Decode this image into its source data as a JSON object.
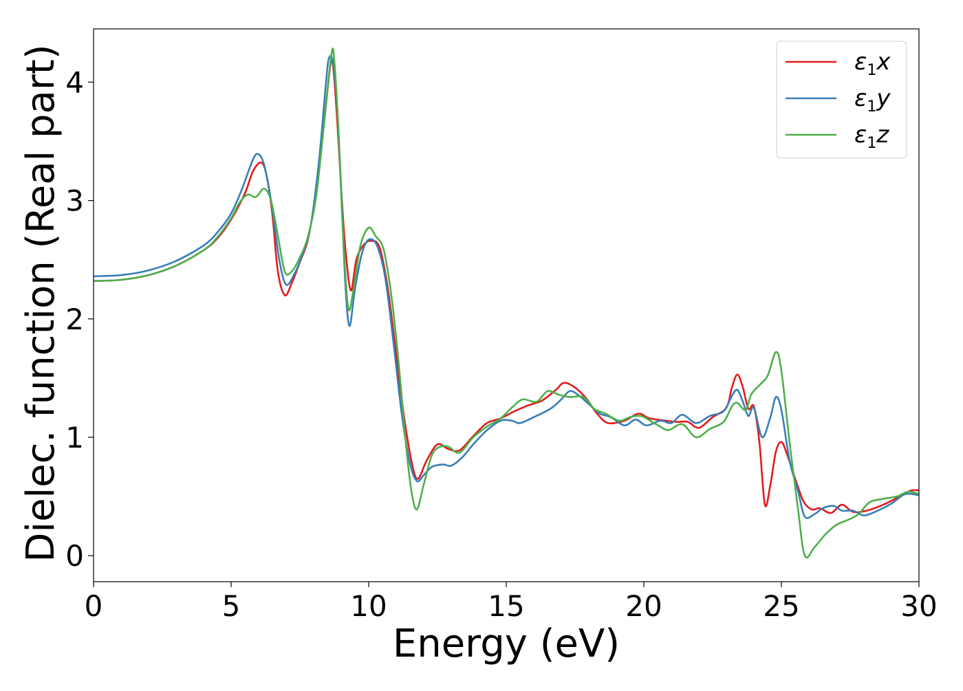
{
  "chart_data": {
    "type": "line",
    "title": "",
    "xlabel": "Energy (eV)",
    "ylabel": "Dielec. function (Real part)",
    "xlim": [
      0,
      30
    ],
    "ylim": [
      -0.22,
      4.45
    ],
    "xticks": [
      0,
      5,
      10,
      15,
      20,
      25,
      30
    ],
    "yticks": [
      0,
      1,
      2,
      3,
      4
    ],
    "grid": false,
    "legend_position": "top-right",
    "series": [
      {
        "name": "ε₁x",
        "legend_base": "ε",
        "legend_sub": "1",
        "legend_tail": "x",
        "color": "#e41a1c",
        "points": [
          [
            0,
            2.32
          ],
          [
            1,
            2.33
          ],
          [
            2,
            2.37
          ],
          [
            3,
            2.45
          ],
          [
            4,
            2.58
          ],
          [
            4.5,
            2.68
          ],
          [
            5,
            2.84
          ],
          [
            5.5,
            3.06
          ],
          [
            5.8,
            3.25
          ],
          [
            6.1,
            3.32
          ],
          [
            6.3,
            3.2
          ],
          [
            6.5,
            2.88
          ],
          [
            6.7,
            2.4
          ],
          [
            6.95,
            2.2
          ],
          [
            7.2,
            2.3
          ],
          [
            7.5,
            2.48
          ],
          [
            7.8,
            2.68
          ],
          [
            8.1,
            3.1
          ],
          [
            8.4,
            3.7
          ],
          [
            8.6,
            4.13
          ],
          [
            8.7,
            4.15
          ],
          [
            8.85,
            3.7
          ],
          [
            9.0,
            3.1
          ],
          [
            9.15,
            2.6
          ],
          [
            9.35,
            2.24
          ],
          [
            9.55,
            2.5
          ],
          [
            9.8,
            2.62
          ],
          [
            10.1,
            2.66
          ],
          [
            10.4,
            2.6
          ],
          [
            10.7,
            2.25
          ],
          [
            11.0,
            1.7
          ],
          [
            11.3,
            1.15
          ],
          [
            11.6,
            0.75
          ],
          [
            11.8,
            0.65
          ],
          [
            12.1,
            0.8
          ],
          [
            12.5,
            0.94
          ],
          [
            12.9,
            0.9
          ],
          [
            13.3,
            0.89
          ],
          [
            13.8,
            1.01
          ],
          [
            14.3,
            1.12
          ],
          [
            14.8,
            1.16
          ],
          [
            15.3,
            1.22
          ],
          [
            15.8,
            1.27
          ],
          [
            16.3,
            1.31
          ],
          [
            16.8,
            1.4
          ],
          [
            17.1,
            1.46
          ],
          [
            17.5,
            1.42
          ],
          [
            17.9,
            1.33
          ],
          [
            18.3,
            1.2
          ],
          [
            18.7,
            1.12
          ],
          [
            19.3,
            1.14
          ],
          [
            19.8,
            1.2
          ],
          [
            20.2,
            1.16
          ],
          [
            20.8,
            1.14
          ],
          [
            21.2,
            1.13
          ],
          [
            21.6,
            1.13
          ],
          [
            22.0,
            1.08
          ],
          [
            22.5,
            1.17
          ],
          [
            23.0,
            1.25
          ],
          [
            23.2,
            1.42
          ],
          [
            23.4,
            1.53
          ],
          [
            23.6,
            1.42
          ],
          [
            23.8,
            1.24
          ],
          [
            24.0,
            1.26
          ],
          [
            24.2,
            0.96
          ],
          [
            24.4,
            0.43
          ],
          [
            24.6,
            0.6
          ],
          [
            24.8,
            0.88
          ],
          [
            25.0,
            0.96
          ],
          [
            25.2,
            0.86
          ],
          [
            25.5,
            0.65
          ],
          [
            25.8,
            0.46
          ],
          [
            26.1,
            0.39
          ],
          [
            26.4,
            0.4
          ],
          [
            26.8,
            0.36
          ],
          [
            27.2,
            0.43
          ],
          [
            27.6,
            0.37
          ],
          [
            28.1,
            0.38
          ],
          [
            28.7,
            0.43
          ],
          [
            29.3,
            0.5
          ],
          [
            29.7,
            0.55
          ],
          [
            30,
            0.55
          ]
        ]
      },
      {
        "name": "ε₁y",
        "legend_base": "ε",
        "legend_sub": "1",
        "legend_tail": "y",
        "color": "#377eb8",
        "points": [
          [
            0,
            2.36
          ],
          [
            1,
            2.37
          ],
          [
            2,
            2.41
          ],
          [
            3,
            2.49
          ],
          [
            4,
            2.62
          ],
          [
            4.5,
            2.73
          ],
          [
            5,
            2.89
          ],
          [
            5.4,
            3.1
          ],
          [
            5.8,
            3.35
          ],
          [
            6.0,
            3.39
          ],
          [
            6.2,
            3.3
          ],
          [
            6.45,
            3.0
          ],
          [
            6.75,
            2.5
          ],
          [
            7.0,
            2.29
          ],
          [
            7.3,
            2.38
          ],
          [
            7.6,
            2.55
          ],
          [
            7.9,
            2.8
          ],
          [
            8.2,
            3.35
          ],
          [
            8.45,
            4.0
          ],
          [
            8.55,
            4.2
          ],
          [
            8.7,
            4.17
          ],
          [
            8.85,
            3.8
          ],
          [
            9.0,
            3.1
          ],
          [
            9.15,
            2.3
          ],
          [
            9.3,
            1.94
          ],
          [
            9.5,
            2.25
          ],
          [
            9.75,
            2.55
          ],
          [
            10.0,
            2.67
          ],
          [
            10.3,
            2.62
          ],
          [
            10.6,
            2.35
          ],
          [
            10.9,
            1.8
          ],
          [
            11.2,
            1.2
          ],
          [
            11.5,
            0.78
          ],
          [
            11.75,
            0.63
          ],
          [
            12.0,
            0.68
          ],
          [
            12.3,
            0.75
          ],
          [
            12.7,
            0.77
          ],
          [
            13.0,
            0.76
          ],
          [
            13.4,
            0.83
          ],
          [
            13.8,
            0.94
          ],
          [
            14.3,
            1.06
          ],
          [
            14.8,
            1.14
          ],
          [
            15.2,
            1.14
          ],
          [
            15.5,
            1.12
          ],
          [
            16.0,
            1.17
          ],
          [
            16.6,
            1.24
          ],
          [
            17.0,
            1.32
          ],
          [
            17.3,
            1.39
          ],
          [
            17.6,
            1.36
          ],
          [
            18.0,
            1.28
          ],
          [
            18.4,
            1.2
          ],
          [
            18.8,
            1.17
          ],
          [
            19.3,
            1.1
          ],
          [
            19.7,
            1.15
          ],
          [
            20.1,
            1.1
          ],
          [
            20.6,
            1.14
          ],
          [
            21.0,
            1.12
          ],
          [
            21.4,
            1.19
          ],
          [
            21.9,
            1.12
          ],
          [
            22.4,
            1.18
          ],
          [
            22.9,
            1.22
          ],
          [
            23.2,
            1.35
          ],
          [
            23.4,
            1.4
          ],
          [
            23.6,
            1.3
          ],
          [
            23.8,
            1.18
          ],
          [
            24.0,
            1.25
          ],
          [
            24.3,
            1.0
          ],
          [
            24.6,
            1.17
          ],
          [
            24.8,
            1.34
          ],
          [
            25.0,
            1.23
          ],
          [
            25.3,
            0.8
          ],
          [
            25.6,
            0.55
          ],
          [
            25.85,
            0.33
          ],
          [
            26.2,
            0.35
          ],
          [
            26.5,
            0.4
          ],
          [
            26.9,
            0.42
          ],
          [
            27.2,
            0.38
          ],
          [
            27.6,
            0.38
          ],
          [
            28.0,
            0.34
          ],
          [
            28.5,
            0.38
          ],
          [
            29.0,
            0.44
          ],
          [
            29.5,
            0.52
          ],
          [
            30,
            0.51
          ]
        ]
      },
      {
        "name": "ε₁z",
        "legend_base": "ε",
        "legend_sub": "1",
        "legend_tail": "z",
        "color": "#4daf4a",
        "points": [
          [
            0,
            2.32
          ],
          [
            1,
            2.33
          ],
          [
            2,
            2.37
          ],
          [
            3,
            2.45
          ],
          [
            4,
            2.58
          ],
          [
            4.5,
            2.69
          ],
          [
            5,
            2.85
          ],
          [
            5.3,
            2.98
          ],
          [
            5.6,
            3.05
          ],
          [
            5.9,
            3.03
          ],
          [
            6.2,
            3.1
          ],
          [
            6.45,
            3.0
          ],
          [
            6.7,
            2.7
          ],
          [
            6.95,
            2.4
          ],
          [
            7.2,
            2.4
          ],
          [
            7.5,
            2.52
          ],
          [
            7.8,
            2.7
          ],
          [
            8.1,
            3.05
          ],
          [
            8.4,
            3.7
          ],
          [
            8.65,
            4.24
          ],
          [
            8.75,
            4.18
          ],
          [
            8.9,
            3.6
          ],
          [
            9.05,
            2.8
          ],
          [
            9.25,
            2.1
          ],
          [
            9.45,
            2.25
          ],
          [
            9.7,
            2.62
          ],
          [
            10.0,
            2.77
          ],
          [
            10.25,
            2.7
          ],
          [
            10.55,
            2.58
          ],
          [
            10.85,
            2.15
          ],
          [
            11.1,
            1.6
          ],
          [
            11.35,
            0.95
          ],
          [
            11.55,
            0.55
          ],
          [
            11.75,
            0.39
          ],
          [
            12.0,
            0.6
          ],
          [
            12.3,
            0.85
          ],
          [
            12.6,
            0.92
          ],
          [
            12.9,
            0.92
          ],
          [
            13.3,
            0.87
          ],
          [
            13.8,
            1.0
          ],
          [
            14.3,
            1.09
          ],
          [
            14.8,
            1.16
          ],
          [
            15.2,
            1.25
          ],
          [
            15.6,
            1.32
          ],
          [
            16.1,
            1.3
          ],
          [
            16.5,
            1.39
          ],
          [
            16.9,
            1.36
          ],
          [
            17.3,
            1.34
          ],
          [
            17.8,
            1.34
          ],
          [
            18.2,
            1.24
          ],
          [
            18.6,
            1.2
          ],
          [
            19.1,
            1.14
          ],
          [
            19.5,
            1.17
          ],
          [
            19.9,
            1.18
          ],
          [
            20.3,
            1.13
          ],
          [
            20.6,
            1.09
          ],
          [
            20.9,
            1.06
          ],
          [
            21.4,
            1.11
          ],
          [
            21.9,
            1.0
          ],
          [
            22.4,
            1.07
          ],
          [
            22.9,
            1.13
          ],
          [
            23.2,
            1.26
          ],
          [
            23.4,
            1.29
          ],
          [
            23.7,
            1.23
          ],
          [
            23.9,
            1.36
          ],
          [
            24.2,
            1.44
          ],
          [
            24.5,
            1.52
          ],
          [
            24.8,
            1.72
          ],
          [
            25.0,
            1.56
          ],
          [
            25.3,
            0.95
          ],
          [
            25.6,
            0.4
          ],
          [
            25.85,
            0.0
          ],
          [
            26.2,
            0.07
          ],
          [
            26.6,
            0.18
          ],
          [
            27.0,
            0.26
          ],
          [
            27.4,
            0.3
          ],
          [
            27.8,
            0.35
          ],
          [
            28.2,
            0.45
          ],
          [
            28.7,
            0.48
          ],
          [
            29.2,
            0.5
          ],
          [
            29.6,
            0.54
          ],
          [
            30,
            0.52
          ]
        ]
      }
    ]
  }
}
